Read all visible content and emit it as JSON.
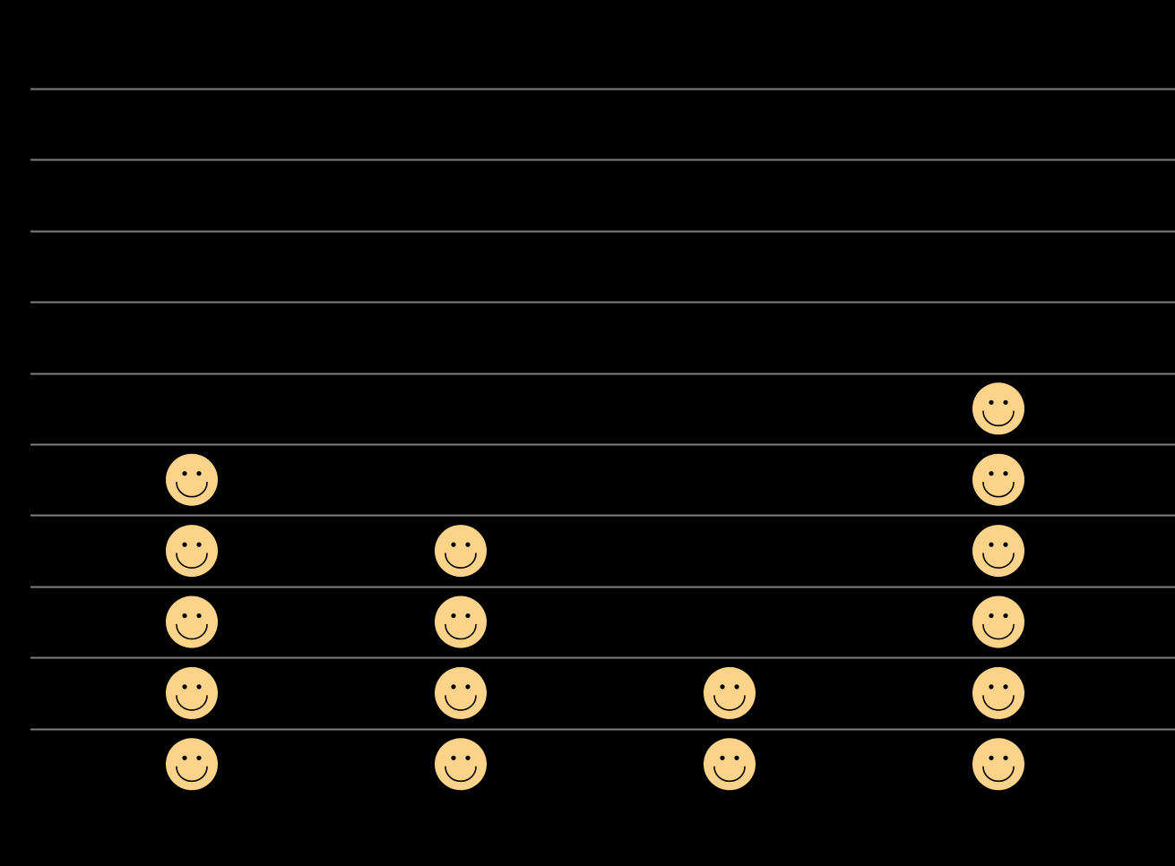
{
  "chart_data": {
    "type": "pictograph",
    "categories": [
      "",
      "",
      "",
      ""
    ],
    "values": [
      5,
      4,
      2,
      6
    ],
    "ylim": [
      0,
      10
    ],
    "grid": true,
    "icon": "smiley-face-icon",
    "colors": {
      "background": "#000000",
      "gridline": "#7f7f7f",
      "icon_fill": "#fcd38b",
      "icon_stroke": "#000000"
    }
  }
}
